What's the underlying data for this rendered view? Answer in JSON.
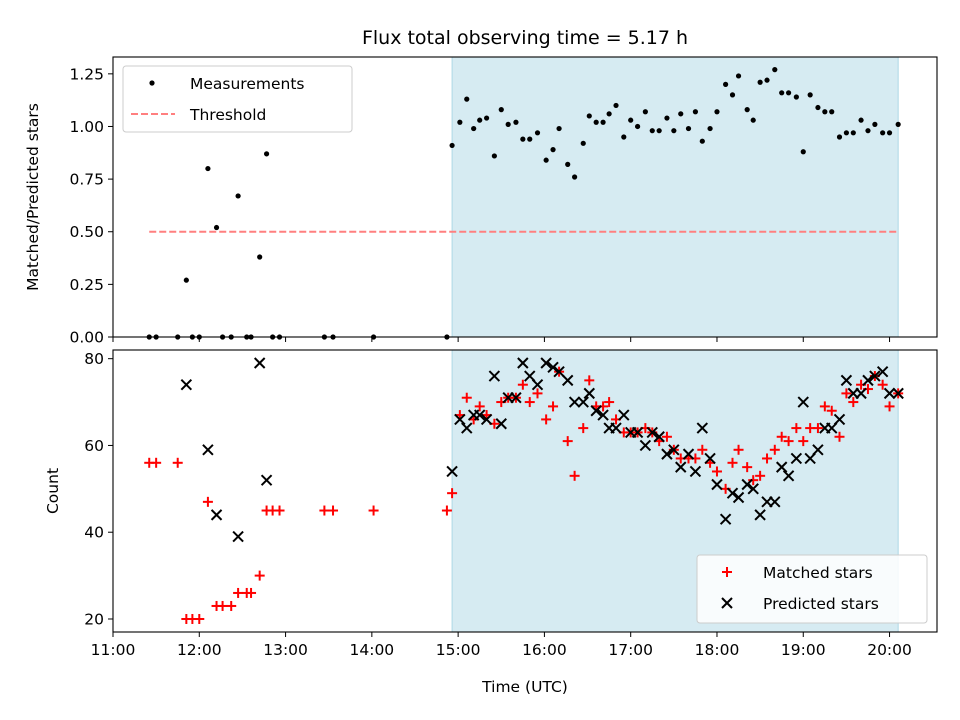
{
  "chart_data": [
    {
      "type": "scatter",
      "title": "Flux total observing time = 5.17 h",
      "xlabel": "",
      "ylabel": "Matched/Predicted stars",
      "ylim": [
        0,
        1.33
      ],
      "yticks": [
        0.0,
        0.25,
        0.5,
        0.75,
        1.0,
        1.25
      ],
      "ytick_labels": [
        "0.00",
        "0.25",
        "0.50",
        "0.75",
        "1.00",
        "1.25"
      ],
      "legend_position": "upper-left",
      "highlight_span_hours": [
        14.93,
        20.1
      ],
      "highlight_color": "#add8e6",
      "threshold": {
        "name": "Threshold",
        "value": 0.5,
        "x_start": 11.42,
        "x_end": 20.1,
        "color": "#ff7f7f"
      },
      "series": [
        {
          "name": "Measurements",
          "color": "#000000",
          "marker": "dot",
          "points": [
            [
              11.42,
              0.0
            ],
            [
              11.5,
              0.0
            ],
            [
              11.75,
              0.0
            ],
            [
              11.85,
              0.27
            ],
            [
              11.92,
              0.0
            ],
            [
              12.0,
              0.0
            ],
            [
              12.1,
              0.8
            ],
            [
              12.2,
              0.52
            ],
            [
              12.27,
              0.0
            ],
            [
              12.37,
              0.0
            ],
            [
              12.45,
              0.67
            ],
            [
              12.55,
              0.0
            ],
            [
              12.6,
              0.0
            ],
            [
              12.7,
              0.38
            ],
            [
              12.78,
              0.87
            ],
            [
              12.85,
              0.0
            ],
            [
              12.93,
              0.0
            ],
            [
              13.45,
              0.0
            ],
            [
              13.55,
              0.0
            ],
            [
              14.02,
              0.0
            ],
            [
              14.87,
              0.0
            ],
            [
              14.93,
              0.91
            ],
            [
              15.02,
              1.02
            ],
            [
              15.1,
              1.13
            ],
            [
              15.18,
              0.99
            ],
            [
              15.25,
              1.03
            ],
            [
              15.33,
              1.04
            ],
            [
              15.42,
              0.86
            ],
            [
              15.5,
              1.08
            ],
            [
              15.58,
              1.01
            ],
            [
              15.67,
              1.02
            ],
            [
              15.75,
              0.94
            ],
            [
              15.83,
              0.94
            ],
            [
              15.92,
              0.97
            ],
            [
              16.02,
              0.84
            ],
            [
              16.1,
              0.89
            ],
            [
              16.17,
              0.99
            ],
            [
              16.27,
              0.82
            ],
            [
              16.35,
              0.76
            ],
            [
              16.45,
              0.92
            ],
            [
              16.52,
              1.05
            ],
            [
              16.6,
              1.02
            ],
            [
              16.68,
              1.02
            ],
            [
              16.75,
              1.06
            ],
            [
              16.83,
              1.1
            ],
            [
              16.92,
              0.95
            ],
            [
              17.0,
              1.03
            ],
            [
              17.08,
              1.0
            ],
            [
              17.17,
              1.07
            ],
            [
              17.25,
              0.98
            ],
            [
              17.33,
              0.98
            ],
            [
              17.42,
              1.04
            ],
            [
              17.5,
              0.98
            ],
            [
              17.58,
              1.06
            ],
            [
              17.67,
              0.99
            ],
            [
              17.75,
              1.07
            ],
            [
              17.83,
              0.93
            ],
            [
              17.92,
              0.99
            ],
            [
              18.0,
              1.07
            ],
            [
              18.1,
              1.2
            ],
            [
              18.18,
              1.15
            ],
            [
              18.25,
              1.24
            ],
            [
              18.35,
              1.08
            ],
            [
              18.42,
              1.03
            ],
            [
              18.5,
              1.21
            ],
            [
              18.58,
              1.22
            ],
            [
              18.67,
              1.27
            ],
            [
              18.75,
              1.16
            ],
            [
              18.83,
              1.16
            ],
            [
              18.92,
              1.14
            ],
            [
              19.0,
              0.88
            ],
            [
              19.08,
              1.15
            ],
            [
              19.17,
              1.09
            ],
            [
              19.25,
              1.07
            ],
            [
              19.33,
              1.07
            ],
            [
              19.42,
              0.95
            ],
            [
              19.5,
              0.97
            ],
            [
              19.58,
              0.97
            ],
            [
              19.67,
              1.03
            ],
            [
              19.75,
              0.98
            ],
            [
              19.83,
              1.01
            ],
            [
              19.92,
              0.97
            ],
            [
              20.0,
              0.97
            ],
            [
              20.1,
              1.01
            ]
          ]
        }
      ]
    },
    {
      "type": "scatter",
      "title": "",
      "xlabel": "Time (UTC)",
      "ylabel": "Count",
      "xlim": [
        11.0,
        20.55
      ],
      "xticks": [
        11,
        12,
        13,
        14,
        15,
        16,
        17,
        18,
        19,
        20
      ],
      "xtick_labels": [
        "11:00",
        "12:00",
        "13:00",
        "14:00",
        "15:00",
        "16:00",
        "17:00",
        "18:00",
        "19:00",
        "20:00"
      ],
      "ylim": [
        17,
        82
      ],
      "yticks": [
        20,
        40,
        60,
        80
      ],
      "ytick_labels": [
        "20",
        "40",
        "60",
        "80"
      ],
      "legend_position": "lower-right",
      "highlight_span_hours": [
        14.93,
        20.1
      ],
      "highlight_color": "#add8e6",
      "series": [
        {
          "name": "Matched stars",
          "color": "#ff0000",
          "marker": "plus",
          "points": [
            [
              11.42,
              56
            ],
            [
              11.5,
              56
            ],
            [
              11.75,
              56
            ],
            [
              11.85,
              20
            ],
            [
              11.92,
              20
            ],
            [
              12.0,
              20
            ],
            [
              12.1,
              47
            ],
            [
              12.2,
              23
            ],
            [
              12.27,
              23
            ],
            [
              12.37,
              23
            ],
            [
              12.45,
              26
            ],
            [
              12.55,
              26
            ],
            [
              12.6,
              26
            ],
            [
              12.7,
              30
            ],
            [
              12.78,
              45
            ],
            [
              12.85,
              45
            ],
            [
              12.93,
              45
            ],
            [
              13.45,
              45
            ],
            [
              13.55,
              45
            ],
            [
              14.02,
              45
            ],
            [
              14.87,
              45
            ],
            [
              14.93,
              49
            ],
            [
              15.02,
              67
            ],
            [
              15.1,
              71
            ],
            [
              15.18,
              66
            ],
            [
              15.25,
              69
            ],
            [
              15.33,
              67
            ],
            [
              15.42,
              65
            ],
            [
              15.5,
              70
            ],
            [
              15.58,
              71
            ],
            [
              15.67,
              71
            ],
            [
              15.75,
              74
            ],
            [
              15.83,
              70
            ],
            [
              15.92,
              72
            ],
            [
              16.02,
              66
            ],
            [
              16.1,
              69
            ],
            [
              16.17,
              77
            ],
            [
              16.27,
              61
            ],
            [
              16.35,
              53
            ],
            [
              16.45,
              64
            ],
            [
              16.52,
              75
            ],
            [
              16.6,
              69
            ],
            [
              16.68,
              69
            ],
            [
              16.75,
              70
            ],
            [
              16.83,
              66
            ],
            [
              16.92,
              63
            ],
            [
              17.0,
              63
            ],
            [
              17.08,
              63
            ],
            [
              17.17,
              64
            ],
            [
              17.25,
              63
            ],
            [
              17.33,
              61
            ],
            [
              17.42,
              62
            ],
            [
              17.5,
              59
            ],
            [
              17.58,
              57
            ],
            [
              17.67,
              57
            ],
            [
              17.75,
              57
            ],
            [
              17.83,
              59
            ],
            [
              17.92,
              56
            ],
            [
              18.0,
              54
            ],
            [
              18.1,
              50
            ],
            [
              18.18,
              56
            ],
            [
              18.25,
              59
            ],
            [
              18.35,
              55
            ],
            [
              18.42,
              52
            ],
            [
              18.5,
              53
            ],
            [
              18.58,
              57
            ],
            [
              18.67,
              59
            ],
            [
              18.75,
              62
            ],
            [
              18.83,
              61
            ],
            [
              18.92,
              64
            ],
            [
              19.0,
              61
            ],
            [
              19.08,
              64
            ],
            [
              19.17,
              64
            ],
            [
              19.25,
              69
            ],
            [
              19.33,
              68
            ],
            [
              19.42,
              62
            ],
            [
              19.5,
              72
            ],
            [
              19.58,
              70
            ],
            [
              19.67,
              74
            ],
            [
              19.75,
              73
            ],
            [
              19.83,
              76
            ],
            [
              19.92,
              74
            ],
            [
              20.0,
              69
            ],
            [
              20.1,
              72
            ]
          ]
        },
        {
          "name": "Predicted stars",
          "color": "#000000",
          "marker": "x",
          "points": [
            [
              11.85,
              74
            ],
            [
              12.1,
              59
            ],
            [
              12.2,
              44
            ],
            [
              12.45,
              39
            ],
            [
              12.7,
              79
            ],
            [
              12.78,
              52
            ],
            [
              14.93,
              54
            ],
            [
              15.02,
              66
            ],
            [
              15.1,
              64
            ],
            [
              15.18,
              67
            ],
            [
              15.25,
              67
            ],
            [
              15.33,
              66
            ],
            [
              15.42,
              76
            ],
            [
              15.5,
              65
            ],
            [
              15.58,
              71
            ],
            [
              15.67,
              71
            ],
            [
              15.75,
              79
            ],
            [
              15.83,
              76
            ],
            [
              15.92,
              74
            ],
            [
              16.02,
              79
            ],
            [
              16.1,
              78
            ],
            [
              16.17,
              77
            ],
            [
              16.27,
              75
            ],
            [
              16.35,
              70
            ],
            [
              16.45,
              70
            ],
            [
              16.52,
              72
            ],
            [
              16.6,
              68
            ],
            [
              16.68,
              67
            ],
            [
              16.75,
              64
            ],
            [
              16.83,
              64
            ],
            [
              16.92,
              67
            ],
            [
              17.0,
              63
            ],
            [
              17.08,
              63
            ],
            [
              17.17,
              60
            ],
            [
              17.25,
              63
            ],
            [
              17.33,
              62
            ],
            [
              17.42,
              58
            ],
            [
              17.5,
              59
            ],
            [
              17.58,
              55
            ],
            [
              17.67,
              58
            ],
            [
              17.75,
              54
            ],
            [
              17.83,
              64
            ],
            [
              17.92,
              57
            ],
            [
              18.0,
              51
            ],
            [
              18.1,
              43
            ],
            [
              18.18,
              49
            ],
            [
              18.25,
              48
            ],
            [
              18.35,
              51
            ],
            [
              18.42,
              50
            ],
            [
              18.5,
              44
            ],
            [
              18.58,
              47
            ],
            [
              18.67,
              47
            ],
            [
              18.75,
              55
            ],
            [
              18.83,
              53
            ],
            [
              18.92,
              57
            ],
            [
              19.0,
              70
            ],
            [
              19.08,
              57
            ],
            [
              19.17,
              59
            ],
            [
              19.25,
              64
            ],
            [
              19.33,
              64
            ],
            [
              19.42,
              66
            ],
            [
              19.5,
              75
            ],
            [
              19.58,
              72
            ],
            [
              19.67,
              72
            ],
            [
              19.75,
              75
            ],
            [
              19.83,
              76
            ],
            [
              19.92,
              77
            ],
            [
              20.0,
              72
            ],
            [
              20.1,
              72
            ]
          ]
        }
      ]
    }
  ]
}
